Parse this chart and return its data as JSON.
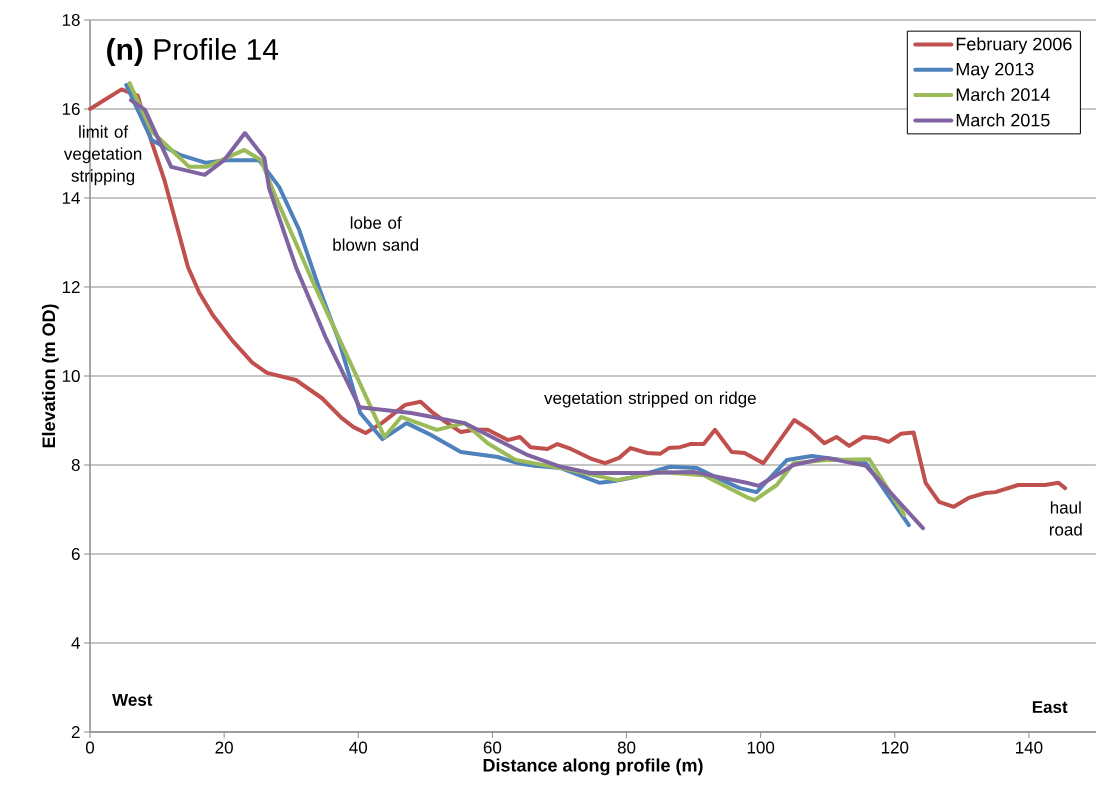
{
  "chart_data": {
    "type": "line",
    "title": "**(n)** Profile 14",
    "xlabel": "Distance along profile (m)",
    "ylabel": "Elevation (m OD)",
    "xlim": [
      0,
      150
    ],
    "ylim": [
      2,
      18
    ],
    "xticks": [
      0,
      20,
      40,
      60,
      80,
      100,
      120,
      140
    ],
    "yticks": [
      2,
      4,
      6,
      8,
      10,
      12,
      14,
      16,
      18
    ],
    "grid": "y",
    "legend": "top right",
    "series": [
      {
        "name": "February 2006",
        "color": "#c0504d",
        "x": [
          0,
          4.7,
          7.1,
          9.1,
          11.1,
          12.9,
          14.6,
          16.3,
          18.3,
          21.2,
          24.2,
          26.4,
          30.7,
          34.6,
          37.5,
          39.3,
          41.1,
          43.5,
          47,
          49.3,
          50.9,
          53,
          55.3,
          57.4,
          59.3,
          62.3,
          64.1,
          65.7,
          68.2,
          69.7,
          71.7,
          74.9,
          76.8,
          78.9,
          80.6,
          83.1,
          85,
          86.3,
          88,
          89.5,
          91.5,
          93.2,
          95.7,
          97.6,
          100.4,
          105,
          107.3,
          109.5,
          111.3,
          113.2,
          115.3,
          117.5,
          119.1,
          120.9,
          122.8,
          124.6,
          126.6,
          128.8,
          131,
          133.5,
          135,
          138.4,
          142.4,
          144.4,
          145.4
        ],
        "values": [
          16.0,
          16.44,
          16.3,
          15.3,
          14.4,
          13.4,
          12.45,
          11.87,
          11.37,
          10.8,
          10.3,
          10.07,
          9.91,
          9.5,
          9.06,
          8.85,
          8.72,
          8.94,
          9.35,
          9.42,
          9.2,
          8.97,
          8.74,
          8.79,
          8.79,
          8.56,
          8.63,
          8.4,
          8.36,
          8.47,
          8.36,
          8.13,
          8.04,
          8.16,
          8.38,
          8.27,
          8.25,
          8.38,
          8.4,
          8.47,
          8.47,
          8.79,
          8.29,
          8.27,
          8.04,
          9.01,
          8.79,
          8.49,
          8.63,
          8.43,
          8.63,
          8.6,
          8.52,
          8.7,
          8.73,
          7.6,
          7.17,
          7.06,
          7.26,
          7.37,
          7.39,
          7.55,
          7.55,
          7.6,
          7.48
        ]
      },
      {
        "name": "May 2013",
        "color": "#4f81bd",
        "x": [
          5.4,
          9.2,
          13.4,
          17.3,
          20.3,
          25.2,
          28.2,
          31.2,
          34.1,
          37.1,
          40.3,
          43.6,
          47.2,
          50.9,
          55.3,
          58.9,
          60.8,
          63.8,
          66.3,
          70.2,
          76,
          78.2,
          81.2,
          86.5,
          90.5,
          93.5,
          96.9,
          99.4,
          103.9,
          107.6,
          115.7,
          122.1
        ],
        "values": [
          16.54,
          15.3,
          14.97,
          14.79,
          14.85,
          14.85,
          14.25,
          13.28,
          12.0,
          10.8,
          9.17,
          8.58,
          8.94,
          8.67,
          8.29,
          8.22,
          8.18,
          8.04,
          7.98,
          7.93,
          7.6,
          7.64,
          7.73,
          7.96,
          7.93,
          7.71,
          7.48,
          7.39,
          8.11,
          8.2,
          8.04,
          6.65
        ]
      },
      {
        "name": "March 2014",
        "color": "#9bbb59",
        "x": [
          5.9,
          9.2,
          14.8,
          17.4,
          23,
          25.5,
          27.7,
          33.1,
          40.5,
          43.9,
          46.4,
          51.7,
          55.9,
          59.3,
          63.5,
          70.2,
          78.6,
          85,
          91.5,
          97.9,
          99.1,
          102.4,
          104.9,
          109.8,
          116.2,
          121.4
        ],
        "values": [
          16.58,
          15.5,
          14.7,
          14.7,
          15.08,
          14.85,
          14.02,
          12.16,
          9.75,
          8.63,
          9.08,
          8.79,
          8.94,
          8.49,
          8.11,
          7.93,
          7.66,
          7.84,
          7.77,
          7.28,
          7.21,
          7.55,
          8.04,
          8.11,
          8.13,
          6.88
        ]
      },
      {
        "name": "March 2015",
        "color": "#8064a2",
        "x": [
          6.1,
          8.2,
          12.1,
          17.1,
          20,
          23.1,
          26,
          26.7,
          30.7,
          35.1,
          40.2,
          47.9,
          55.9,
          60.8,
          65.3,
          70.2,
          74.6,
          81.6,
          90.1,
          97.9,
          99.7,
          104.9,
          109.8,
          115.7,
          124.2
        ],
        "values": [
          16.2,
          15.98,
          14.7,
          14.52,
          14.85,
          15.46,
          14.9,
          14.22,
          12.45,
          10.88,
          9.3,
          9.17,
          8.94,
          8.56,
          8.22,
          7.96,
          7.82,
          7.82,
          7.84,
          7.6,
          7.53,
          8.0,
          8.16,
          7.98,
          6.58
        ]
      }
    ],
    "annotations": [
      "limit of vegetation stripping",
      "lobe of blown sand",
      "vegetation stripped on ridge",
      "haul road",
      "West",
      "East"
    ]
  }
}
